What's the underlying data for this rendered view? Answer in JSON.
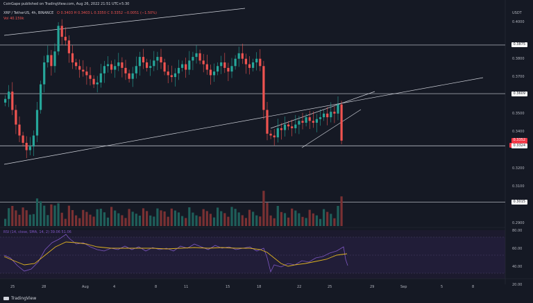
{
  "header": {
    "published": "CoinGape published on TradingView.com, Aug 26, 2022 21:51 UTC+5:30",
    "symbol": "XRP / TetherUS, 4h, BINANCE",
    "ohlc": "O 0.3403  H 0.3403  L 0.3350  C 0.3352  −0.0051 (−1.50%)",
    "vol": "Vol  40.159k",
    "currency": "USDT",
    "rsi": "RSI (14, close, SMA, 14, 2)  39.06  51.06"
  },
  "colors": {
    "up": "#26a69a",
    "down": "#ef5350",
    "rsi": "#7e57c2",
    "rsi_ma": "#e0b420",
    "price_badge": "#f23645"
  },
  "chart_data": {
    "type": "candlestick",
    "y_ticks": [
      "0.4000",
      "0.3800",
      "0.3700",
      "0.3500",
      "0.3400",
      "0.3200",
      "0.3100",
      "0.2900"
    ],
    "rsi_ticks": [
      "80.00",
      "60.00",
      "40.00",
      "20.00"
    ],
    "x_ticks": [
      "25",
      "28",
      "Aug",
      "4",
      "8",
      "11",
      "15",
      "18",
      "22",
      "25",
      "29",
      "Sep",
      "5",
      "8"
    ],
    "levels": [
      {
        "value": 0.3875,
        "label": "0.3875"
      },
      {
        "value": 0.3609,
        "label": "0.3609"
      },
      {
        "value": 0.3324,
        "label": "0.3324"
      },
      {
        "value": 0.3015,
        "label": "0.3015"
      }
    ],
    "last_price": "0.3352",
    "countdown": "00:36:56",
    "candles_close": [
      0.358,
      0.362,
      0.352,
      0.344,
      0.338,
      0.334,
      0.33,
      0.332,
      0.338,
      0.352,
      0.366,
      0.378,
      0.382,
      0.376,
      0.384,
      0.398,
      0.392,
      0.39,
      0.383,
      0.378,
      0.376,
      0.374,
      0.373,
      0.371,
      0.369,
      0.366,
      0.367,
      0.372,
      0.376,
      0.377,
      0.374,
      0.376,
      0.378,
      0.375,
      0.372,
      0.369,
      0.372,
      0.376,
      0.381,
      0.378,
      0.375,
      0.376,
      0.379,
      0.381,
      0.378,
      0.373,
      0.371,
      0.37,
      0.372,
      0.375,
      0.377,
      0.374,
      0.379,
      0.381,
      0.383,
      0.379,
      0.377,
      0.374,
      0.371,
      0.373,
      0.376,
      0.378,
      0.375,
      0.373,
      0.376,
      0.38,
      0.383,
      0.38,
      0.377,
      0.375,
      0.378,
      0.38,
      0.376,
      0.352,
      0.339,
      0.338,
      0.337,
      0.342,
      0.341,
      0.344,
      0.343,
      0.342,
      0.344,
      0.346,
      0.345,
      0.348,
      0.346,
      0.345,
      0.347,
      0.348,
      0.35,
      0.348,
      0.351,
      0.35,
      0.355,
      0.3352
    ]
  }
}
